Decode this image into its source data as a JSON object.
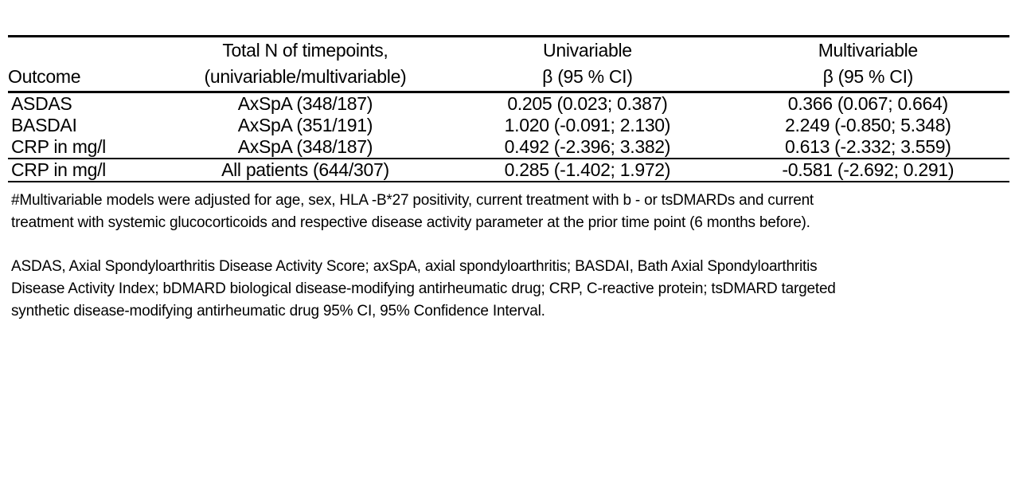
{
  "table": {
    "columns": [
      {
        "label": "Outcome"
      },
      {
        "label": "Total N of timepoints,\n(univariable/multivariable)"
      },
      {
        "label": "Univariable\nβ (95 % CI)"
      },
      {
        "label": "Multivariable\nβ (95 % CI)"
      }
    ],
    "rows": [
      {
        "outcome": "ASDAS",
        "n": "AxSpA (348/187)",
        "uni": "0.205 (0.023; 0.387)",
        "multi": "0.366 (0.067; 0.664)",
        "emphasis": true
      },
      {
        "outcome": "BASDAI",
        "n": "AxSpA (351/191)",
        "uni": "1.020 (-0.091; 2.130)",
        "multi": "2.249 (-0.850; 5.348)",
        "emphasis": false
      },
      {
        "outcome": "CRP in mg/l",
        "n": "AxSpA (348/187)",
        "uni": "0.492 (-2.396; 3.382)",
        "multi": "0.613 (-2.332; 3.559)",
        "emphasis": false
      },
      {
        "outcome": "CRP in mg/l",
        "n": "All patients (644/307)",
        "uni": "0.285 (-1.402; 1.972)",
        "multi": "-0.581 (-2.692; 0.291)",
        "emphasis": false
      }
    ]
  },
  "notes": {
    "adjustment": "#Multivariable models were adjusted for age, sex, HLA -B*27 positivity, current treatment with b - or tsDMARDs and current\ntreatment with systemic glucocorticoids and respective disease activity parameter at the prior time point (6 months before).",
    "abbreviations": "ASDAS, Axial Spondyloarthritis Disease Activity Score; axSpA, axial spondyloarthritis; BASDAI, Bath Axial Spondyloarthritis\nDisease Activity Index; bDMARD biological disease-modifying antirheumatic drug; CRP, C-reactive protein; tsDMARD targeted\nsynthetic disease-modifying antirheumatic drug 95% CI, 95% Confidence Interval."
  }
}
